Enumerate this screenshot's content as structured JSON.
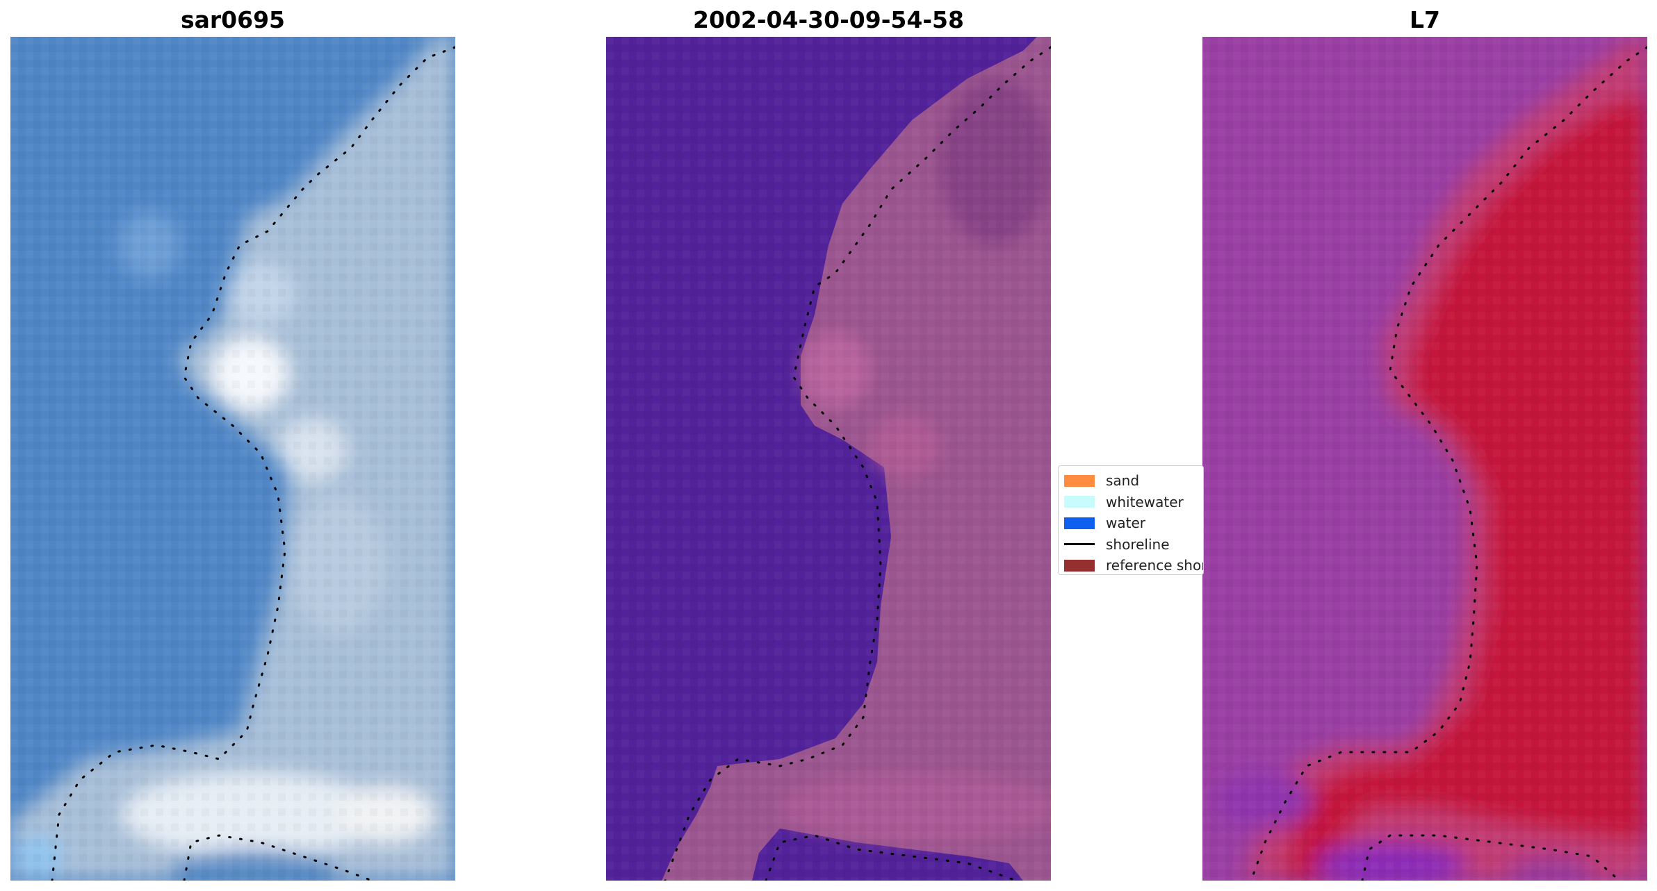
{
  "panels": [
    {
      "title": "sar0695",
      "kind": "rgb"
    },
    {
      "title": "2002-04-30-09-54-58",
      "kind": "classified"
    },
    {
      "title": "L7",
      "kind": "index"
    }
  ],
  "legend": {
    "items": [
      {
        "label": "sand",
        "type": "patch",
        "color": "#ff8c40"
      },
      {
        "label": "whitewater",
        "type": "patch",
        "color": "#c8fcfc"
      },
      {
        "label": "water",
        "type": "patch",
        "color": "#1060f0"
      },
      {
        "label": "shoreline",
        "type": "line",
        "color": "#000000"
      },
      {
        "label": "reference shoreline",
        "type": "patch",
        "color": "#963030"
      }
    ]
  },
  "colors": {
    "rgb_water": "#4f86c6",
    "rgb_land": "#b4c8dc",
    "classified_water": "#52229a",
    "classified_land": "#a05a96",
    "index_water": "#9a3fa4",
    "index_land": "#c4123a",
    "shoreline": "#000000"
  }
}
